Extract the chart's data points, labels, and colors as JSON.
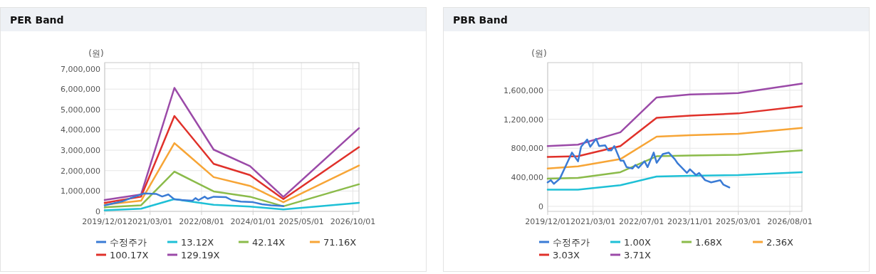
{
  "chart_data": [
    {
      "type": "line",
      "title": "PER Band",
      "ylabel": "(원)",
      "grid": true,
      "legend": "bottom",
      "xlim": [
        "2019-12-01",
        "2026-12-01"
      ],
      "ylim": [
        0,
        7300000
      ],
      "xticks": [
        {
          "value": "2019-12-01",
          "label": "2019/12/01"
        },
        {
          "value": "2021-03-01",
          "label": "2021/03/01"
        },
        {
          "value": "2022-08-01",
          "label": "2022/08/01"
        },
        {
          "value": "2024-01-01",
          "label": "2024/01/01"
        },
        {
          "value": "2025-05-01",
          "label": "2025/05/01"
        },
        {
          "value": "2026-10-01",
          "label": "2026/10/01"
        }
      ],
      "yticks": [
        0,
        {
          "value": 1000000,
          "label": "1,000,000"
        },
        {
          "value": 2000000,
          "label": "2,000,000"
        },
        {
          "value": 3000000,
          "label": "3,000,000"
        },
        {
          "value": 4000000,
          "label": "4,000,000"
        },
        {
          "value": 5000000,
          "label": "5,000,000"
        },
        {
          "value": 6000000,
          "label": "6,000,000"
        },
        {
          "value": 7000000,
          "label": "7,000,000"
        }
      ],
      "series": [
        {
          "name": "수정주가",
          "color": "#3a7bd5",
          "x": [
            "2019-12",
            "2020-06",
            "2020-10",
            "2021-01",
            "2021-05",
            "2021-07",
            "2021-09",
            "2021-11",
            "2022-02",
            "2022-05",
            "2022-06",
            "2022-07",
            "2022-09",
            "2022-10",
            "2022-12",
            "2023-04",
            "2023-06",
            "2023-09",
            "2024-01",
            "2024-04",
            "2024-07",
            "2024-11"
          ],
          "values": [
            300000,
            500000,
            730000,
            880000,
            860000,
            730000,
            830000,
            590000,
            550000,
            520000,
            650000,
            550000,
            720000,
            620000,
            720000,
            700000,
            550000,
            480000,
            450000,
            350000,
            300000,
            260000
          ]
        },
        {
          "name": "13.12X",
          "color": "#1ec0d6",
          "x": [
            "2019-12",
            "2020-12",
            "2021-11",
            "2022-12",
            "2023-12",
            "2024-11",
            "2026-12"
          ],
          "values": [
            50000,
            130000,
            600000,
            320000,
            240000,
            100000,
            420000
          ]
        },
        {
          "name": "42.14X",
          "color": "#8bbb4a",
          "x": [
            "2019-12",
            "2020-12",
            "2021-11",
            "2022-12",
            "2023-12",
            "2024-11",
            "2026-12"
          ],
          "values": [
            200000,
            300000,
            1950000,
            980000,
            720000,
            250000,
            1330000
          ]
        },
        {
          "name": "71.16X",
          "color": "#f7a536",
          "x": [
            "2019-12",
            "2020-12",
            "2021-11",
            "2022-12",
            "2023-12",
            "2024-11",
            "2026-12"
          ],
          "values": [
            330000,
            520000,
            3350000,
            1680000,
            1250000,
            450000,
            2250000
          ]
        },
        {
          "name": "100.17X",
          "color": "#e0312a",
          "x": [
            "2019-12",
            "2020-12",
            "2021-11",
            "2022-12",
            "2023-12",
            "2024-11",
            "2026-12"
          ],
          "values": [
            420000,
            720000,
            4680000,
            2330000,
            1780000,
            600000,
            3150000
          ]
        },
        {
          "name": "129.19X",
          "color": "#9b4aa8",
          "x": [
            "2019-12",
            "2020-12",
            "2021-11",
            "2022-12",
            "2023-12",
            "2024-11",
            "2026-12"
          ],
          "values": [
            560000,
            830000,
            6060000,
            3030000,
            2220000,
            710000,
            4080000
          ]
        }
      ]
    },
    {
      "type": "line",
      "title": "PBR Band",
      "ylabel": "(원)",
      "grid": true,
      "legend": "bottom",
      "xlim": [
        "2019-12-01",
        "2026-12-01"
      ],
      "ylim": [
        -70000,
        1980000
      ],
      "xticks": [
        {
          "value": "2019-12-01",
          "label": "2019/12/01"
        },
        {
          "value": "2021-03-01",
          "label": "2021/03/01"
        },
        {
          "value": "2022-07-01",
          "label": "2022/07/01"
        },
        {
          "value": "2023-11-01",
          "label": "2023/11/01"
        },
        {
          "value": "2025-03-01",
          "label": "2025/03/01"
        },
        {
          "value": "2026-08-01",
          "label": "2026/08/01"
        }
      ],
      "yticks": [
        0,
        {
          "value": 400000,
          "label": "400,000"
        },
        {
          "value": 800000,
          "label": "800,000"
        },
        {
          "value": 1200000,
          "label": "1,200,000"
        },
        {
          "value": 1600000,
          "label": "1,600,000"
        }
      ],
      "series": [
        {
          "name": "수정주가",
          "color": "#3a7bd5",
          "x": [
            "2019-12",
            "2020-01",
            "2020-02",
            "2020-04",
            "2020-06",
            "2020-08",
            "2020-10",
            "2020-11",
            "2021-01",
            "2021-02",
            "2021-04",
            "2021-05",
            "2021-07",
            "2021-08",
            "2021-09",
            "2021-10",
            "2021-12",
            "2022-01",
            "2022-02",
            "2022-04",
            "2022-05",
            "2022-06",
            "2022-08",
            "2022-09",
            "2022-11",
            "2022-12",
            "2023-02",
            "2023-04",
            "2023-06",
            "2023-07",
            "2023-10",
            "2023-11",
            "2024-01",
            "2024-02",
            "2024-04",
            "2024-06",
            "2024-09",
            "2024-10",
            "2024-12"
          ],
          "values": [
            330000,
            360000,
            310000,
            380000,
            560000,
            740000,
            620000,
            820000,
            920000,
            820000,
            930000,
            830000,
            840000,
            770000,
            770000,
            830000,
            630000,
            630000,
            540000,
            520000,
            570000,
            530000,
            620000,
            540000,
            740000,
            600000,
            720000,
            740000,
            650000,
            590000,
            460000,
            510000,
            430000,
            460000,
            360000,
            330000,
            360000,
            300000,
            260000
          ]
        },
        {
          "name": "1.00X",
          "color": "#1ec0d6",
          "x": [
            "2019-12",
            "2020-10",
            "2021-12",
            "2022-12",
            "2023-11",
            "2025-03",
            "2026-12"
          ],
          "values": [
            230000,
            230000,
            290000,
            410000,
            420000,
            430000,
            470000
          ]
        },
        {
          "name": "1.68X",
          "color": "#8bbb4a",
          "x": [
            "2019-12",
            "2020-10",
            "2021-12",
            "2022-12",
            "2023-11",
            "2025-03",
            "2026-12"
          ],
          "values": [
            380000,
            390000,
            470000,
            690000,
            700000,
            710000,
            770000
          ]
        },
        {
          "name": "2.36X",
          "color": "#f7a536",
          "x": [
            "2019-12",
            "2020-10",
            "2021-12",
            "2022-12",
            "2023-11",
            "2025-03",
            "2026-12"
          ],
          "values": [
            520000,
            550000,
            650000,
            960000,
            980000,
            1000000,
            1080000
          ]
        },
        {
          "name": "3.03X",
          "color": "#e0312a",
          "x": [
            "2019-12",
            "2020-10",
            "2021-12",
            "2022-12",
            "2023-11",
            "2025-03",
            "2026-12"
          ],
          "values": [
            680000,
            690000,
            830000,
            1220000,
            1250000,
            1280000,
            1380000
          ]
        },
        {
          "name": "3.71X",
          "color": "#9b4aa8",
          "x": [
            "2019-12",
            "2020-10",
            "2021-12",
            "2022-12",
            "2023-11",
            "2025-03",
            "2026-12"
          ],
          "values": [
            830000,
            850000,
            1020000,
            1500000,
            1540000,
            1560000,
            1690000
          ]
        }
      ]
    }
  ]
}
